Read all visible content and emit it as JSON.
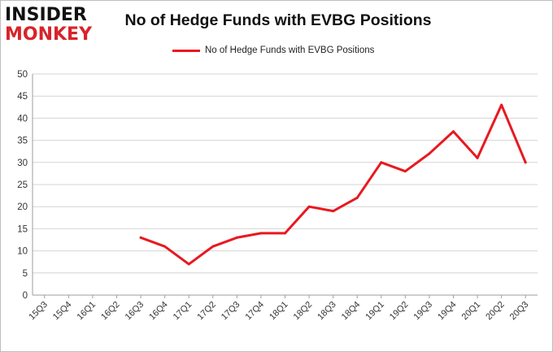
{
  "logo": {
    "line1": "INSIDER",
    "line2": "MONKEY"
  },
  "chart_data": {
    "type": "line",
    "title": "No of Hedge Funds with EVBG Positions",
    "xlabel": "",
    "ylabel": "",
    "categories": [
      "15Q3",
      "15Q4",
      "16Q1",
      "16Q2",
      "16Q3",
      "16Q4",
      "17Q1",
      "17Q2",
      "17Q3",
      "17Q4",
      "18Q1",
      "18Q2",
      "18Q3",
      "18Q4",
      "19Q1",
      "19Q2",
      "19Q3",
      "19Q4",
      "20Q1",
      "20Q2",
      "20Q3"
    ],
    "series": [
      {
        "name": "No of Hedge Funds with EVBG  Positions",
        "values": [
          null,
          null,
          null,
          null,
          13,
          11,
          7,
          11,
          13,
          14,
          14,
          20,
          19,
          22,
          30,
          28,
          32,
          37,
          31,
          43,
          30
        ],
        "color": "#e8191f"
      }
    ],
    "ylim": [
      0,
      50
    ],
    "yticks": [
      0,
      5,
      10,
      15,
      20,
      25,
      30,
      35,
      40,
      45,
      50
    ],
    "grid": true,
    "legend": "top-center"
  }
}
